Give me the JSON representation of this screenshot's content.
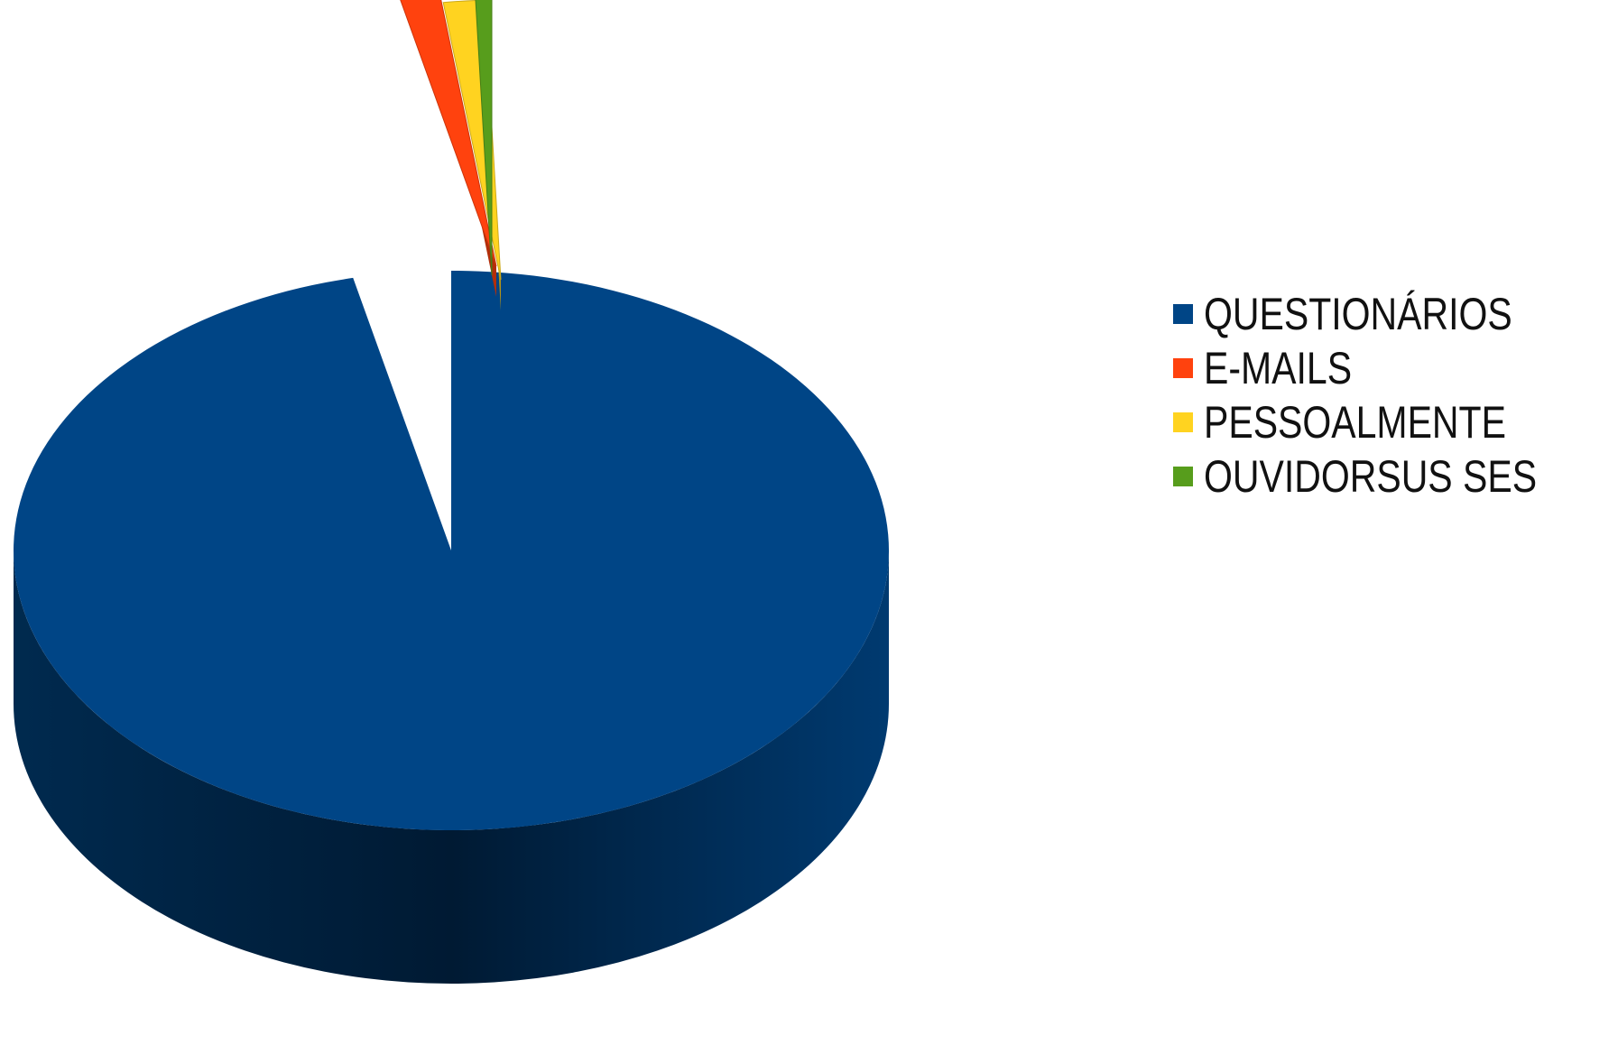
{
  "chart_data": {
    "type": "pie",
    "style": "3d-exploded",
    "series": [
      {
        "name": "QUESTIONÁRIOS",
        "value": 96.4,
        "color": "#004586"
      },
      {
        "name": "E-MAILS",
        "value": 1.5,
        "color": "#ff420e"
      },
      {
        "name": "PESSOALMENTE",
        "value": 1.5,
        "color": "#ffd320"
      },
      {
        "name": "OUVIDORSUS SES",
        "value": 0.6,
        "color": "#579d1c"
      }
    ],
    "legend_position": "right",
    "title": ""
  }
}
